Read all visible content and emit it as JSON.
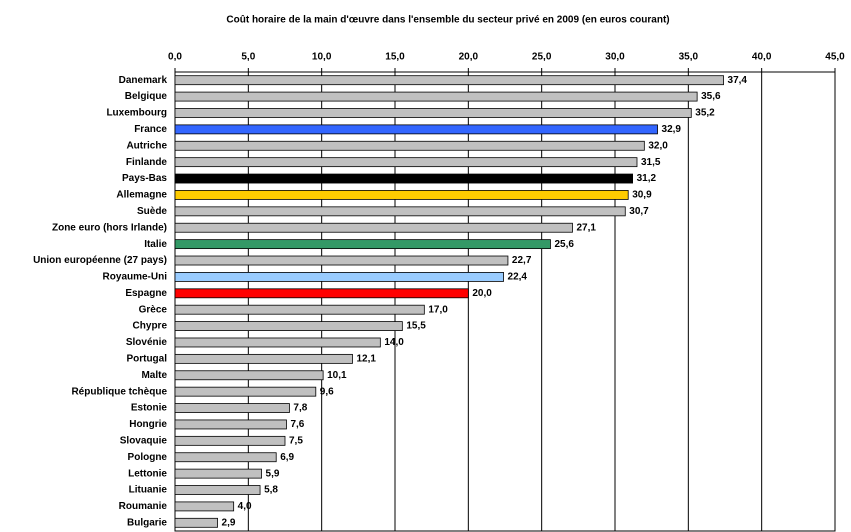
{
  "chart_data": {
    "type": "hbar",
    "title": "Coût horaire de la main d'œuvre dans l'ensemble du secteur privé en 2009 (en euros courant)",
    "categories": [
      "Danemark",
      "Belgique",
      "Luxembourg",
      "France",
      "Autriche",
      "Finlande",
      "Pays-Bas",
      "Allemagne",
      "Suède",
      "Zone euro (hors Irlande)",
      "Italie",
      "Union européenne (27 pays)",
      "Royaume-Uni",
      "Espagne",
      "Grèce",
      "Chypre",
      "Slovénie",
      "Portugal",
      "Malte",
      "République tchèque",
      "Estonie",
      "Hongrie",
      "Slovaquie",
      "Pologne",
      "Lettonie",
      "Lituanie",
      "Roumanie",
      "Bulgarie"
    ],
    "values": [
      37.4,
      35.6,
      35.2,
      32.9,
      32.0,
      31.5,
      31.2,
      30.9,
      30.7,
      27.1,
      25.6,
      22.7,
      22.4,
      20.0,
      17.0,
      15.5,
      14.0,
      12.1,
      10.1,
      9.6,
      7.8,
      7.6,
      7.5,
      6.9,
      5.9,
      5.8,
      4.0,
      2.9
    ],
    "value_labels": [
      "37,4",
      "35,6",
      "35,2",
      "32,9",
      "32,0",
      "31,5",
      "31,2",
      "30,9",
      "30,7",
      "27,1",
      "25,6",
      "22,7",
      "22,4",
      "20,0",
      "17,0",
      "15,5",
      "14,0",
      "12,1",
      "10,1",
      "9,6",
      "7,8",
      "7,6",
      "7,5",
      "6,9",
      "5,9",
      "5,8",
      "4,0",
      "2,9"
    ],
    "colors": [
      "#c0c0c0",
      "#c0c0c0",
      "#c0c0c0",
      "#3366ff",
      "#c0c0c0",
      "#c0c0c0",
      "#000000",
      "#ffcc00",
      "#c0c0c0",
      "#c0c0c0",
      "#339966",
      "#c0c0c0",
      "#99ccff",
      "#ff0000",
      "#c0c0c0",
      "#c0c0c0",
      "#c0c0c0",
      "#c0c0c0",
      "#c0c0c0",
      "#c0c0c0",
      "#c0c0c0",
      "#c0c0c0",
      "#c0c0c0",
      "#c0c0c0",
      "#c0c0c0",
      "#c0c0c0",
      "#c0c0c0",
      "#c0c0c0"
    ],
    "xlim": [
      0,
      45
    ],
    "xticks": [
      {
        "value": 0,
        "label": "0,0"
      },
      {
        "value": 5,
        "label": "5,0"
      },
      {
        "value": 10,
        "label": "10,0"
      },
      {
        "value": 15,
        "label": "15,0"
      },
      {
        "value": 20,
        "label": "20,0"
      },
      {
        "value": 25,
        "label": "25,0"
      },
      {
        "value": 30,
        "label": "30,0"
      },
      {
        "value": 35,
        "label": "35,0"
      },
      {
        "value": 40,
        "label": "40,0"
      },
      {
        "value": 45,
        "label": "45,0"
      }
    ],
    "grid": true
  }
}
